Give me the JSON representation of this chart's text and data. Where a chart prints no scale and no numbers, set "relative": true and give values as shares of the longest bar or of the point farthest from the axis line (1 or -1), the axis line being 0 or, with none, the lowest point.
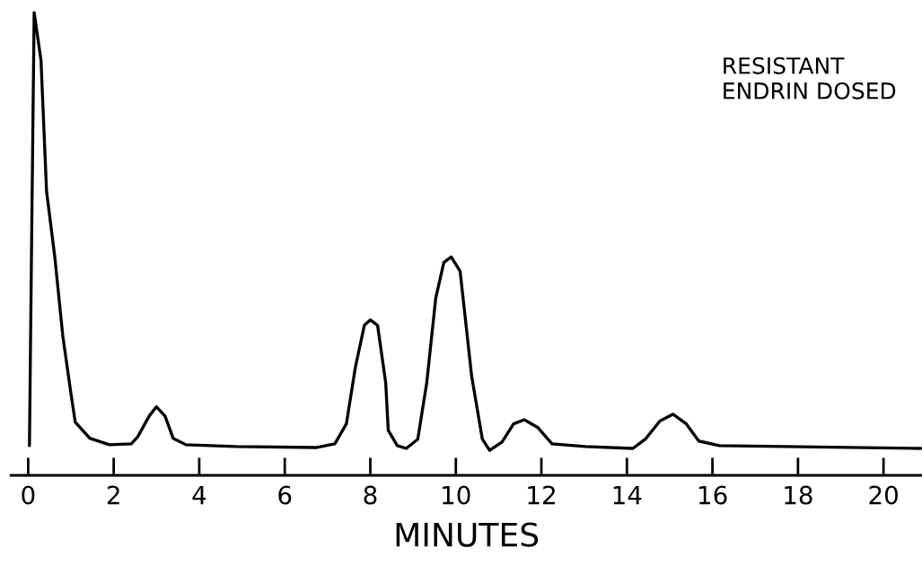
{
  "chart_data": {
    "type": "line",
    "relative": true,
    "xlabel": "MINUTES",
    "annotations": [
      "RESISTANT\nENDRIN DOSED"
    ],
    "x": [
      0.03,
      0.08,
      0.14,
      0.3,
      0.43,
      0.62,
      0.81,
      1.0,
      1.1,
      1.44,
      1.9,
      2.41,
      2.56,
      2.83,
      3.0,
      3.2,
      3.39,
      3.69,
      4.87,
      6.75,
      7.17,
      7.44,
      7.65,
      7.86,
      8.0,
      8.17,
      8.36,
      8.42,
      8.63,
      8.84,
      9.11,
      9.32,
      9.53,
      9.72,
      9.89,
      10.1,
      10.37,
      10.62,
      10.79,
      11.08,
      11.35,
      11.6,
      11.92,
      12.25,
      13.03,
      14.14,
      14.43,
      14.77,
      15.08,
      15.39,
      15.68,
      16.16,
      20.87
    ],
    "series": [
      {
        "color": "#000000",
        "values": [
          0.064,
          0.5,
          1.0,
          0.897,
          0.614,
          0.474,
          0.301,
          0.177,
          0.115,
          0.08,
          0.066,
          0.068,
          0.083,
          0.128,
          0.148,
          0.128,
          0.08,
          0.066,
          0.062,
          0.06,
          0.068,
          0.111,
          0.233,
          0.324,
          0.336,
          0.324,
          0.2,
          0.097,
          0.064,
          0.058,
          0.078,
          0.2,
          0.383,
          0.46,
          0.472,
          0.441,
          0.214,
          0.078,
          0.054,
          0.072,
          0.111,
          0.12,
          0.103,
          0.068,
          0.062,
          0.058,
          0.078,
          0.117,
          0.132,
          0.111,
          0.074,
          0.064,
          0.058
        ]
      }
    ],
    "xlim": [
      -0.4,
      20.9
    ],
    "xticks": [
      0,
      2,
      4,
      6,
      8,
      10,
      12,
      14,
      16,
      18,
      20
    ],
    "grid": false,
    "legend": false
  }
}
